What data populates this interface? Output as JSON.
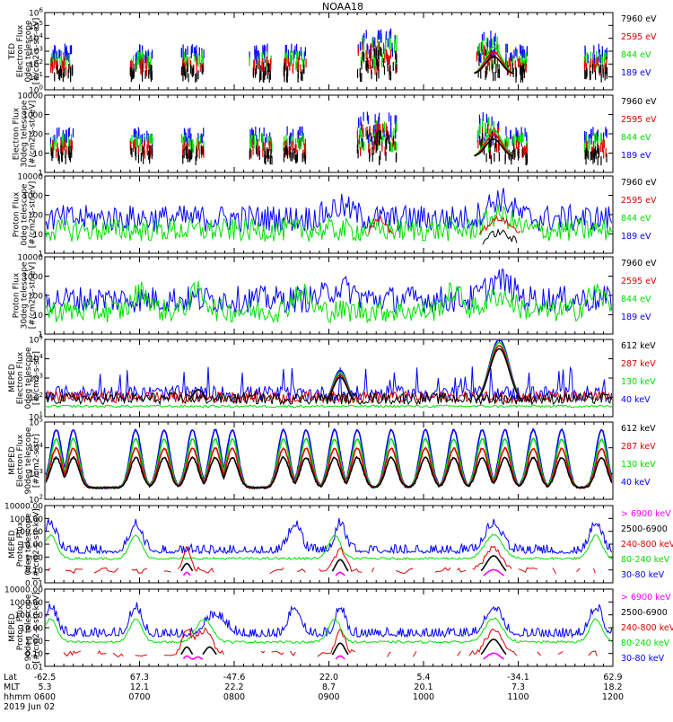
{
  "title": "NOAA18",
  "colors": {
    "black": "#000000",
    "red": "#e00000",
    "green": "#00e000",
    "blue": "#0000ff",
    "magenta": "#ff00ff"
  },
  "bottom_axis": {
    "row_labels": [
      "Lat",
      "MLT",
      "hhmm"
    ],
    "date": "2019 Jun 02",
    "columns": [
      {
        "lat": "-62.5",
        "mlt": "5.3",
        "hhmm": "0600"
      },
      {
        "lat": "67.3",
        "mlt": "12.1",
        "hhmm": "0700"
      },
      {
        "lat": "-47.6",
        "mlt": "22.2",
        "hhmm": "0800"
      },
      {
        "lat": "22.0",
        "mlt": "8.7",
        "hhmm": "0900"
      },
      {
        "lat": "5.4",
        "mlt": "20.1",
        "hhmm": "1000"
      },
      {
        "lat": "-34.1",
        "mlt": "7.3",
        "hhmm": "1100"
      },
      {
        "lat": "62.9",
        "mlt": "18.2",
        "hhmm": "1200"
      }
    ]
  },
  "chart_data": [
    {
      "type": "scatter",
      "ylabel_lines": [
        "TED",
        "Electron Flux",
        "0deg telescope",
        "[#/cm2-s-str-eV]"
      ],
      "y_log": true,
      "ylim": [
        1,
        1000000
      ],
      "yticks": [
        {
          "base": "10",
          "exp": "0"
        },
        {
          "base": "10",
          "exp": "1"
        },
        {
          "base": "10",
          "exp": "2"
        },
        {
          "base": "10",
          "exp": "3"
        },
        {
          "base": "10",
          "exp": "4"
        },
        {
          "base": "10",
          "exp": "5"
        },
        {
          "base": "10",
          "exp": "6"
        }
      ],
      "legend": [
        {
          "label": "7960 eV",
          "color": "black"
        },
        {
          "label": "2595 eV",
          "color": "red"
        },
        {
          "label": "844 eV",
          "color": "green"
        },
        {
          "label": "189 eV",
          "color": "blue"
        }
      ],
      "style": "ted_e"
    },
    {
      "type": "scatter",
      "ylabel_lines": [
        "Electron Flux",
        "30deg telescope",
        "[#/cm2-s-str-eV]"
      ],
      "y_log": true,
      "ylim": [
        1,
        10000
      ],
      "yticks": [
        {
          "text": "1"
        },
        {
          "text": "10"
        },
        {
          "text": "100"
        },
        {
          "text": "1000"
        },
        {
          "text": "10000"
        }
      ],
      "legend": [
        {
          "label": "7960 eV",
          "color": "black"
        },
        {
          "label": "2595 eV",
          "color": "red"
        },
        {
          "label": "844 eV",
          "color": "green"
        },
        {
          "label": "189 eV",
          "color": "blue"
        }
      ],
      "style": "ted_e"
    },
    {
      "type": "scatter",
      "ylabel_lines": [
        "Proton Flux",
        "0deg telescope",
        "[#/cm2-s-str-eV]"
      ],
      "y_log": true,
      "ylim": [
        1,
        10000
      ],
      "yticks": [
        {
          "text": "1"
        },
        {
          "text": "10"
        },
        {
          "text": "100"
        },
        {
          "text": "1000"
        },
        {
          "text": "10000"
        }
      ],
      "legend": [
        {
          "label": "7960 eV",
          "color": "black"
        },
        {
          "label": "2595 eV",
          "color": "red"
        },
        {
          "label": "844 eV",
          "color": "green"
        },
        {
          "label": "189 eV",
          "color": "blue"
        }
      ],
      "style": "ted_p0"
    },
    {
      "type": "scatter",
      "ylabel_lines": [
        "Proton Flux",
        "30deg telescope",
        "[#/cm2-s-str-eV]"
      ],
      "y_log": true,
      "ylim": [
        1,
        10000
      ],
      "yticks": [
        {
          "text": "1"
        },
        {
          "text": "10"
        },
        {
          "text": "100"
        },
        {
          "text": "1000"
        },
        {
          "text": "10000"
        }
      ],
      "legend": [
        {
          "label": "7960 eV",
          "color": "black"
        },
        {
          "label": "2595 eV",
          "color": "red"
        },
        {
          "label": "844 eV",
          "color": "green"
        },
        {
          "label": "189 eV",
          "color": "blue"
        }
      ],
      "style": "ted_p30"
    },
    {
      "type": "scatter",
      "ylabel_lines": [
        "MEPED",
        "Electron Flux",
        "0deg telescope",
        "[#/cm2-s-str]"
      ],
      "y_log": true,
      "ylim": [
        10,
        1000000
      ],
      "yticks": [
        {
          "base": "10",
          "exp": "1"
        },
        {
          "base": "10",
          "exp": "2"
        },
        {
          "base": "10",
          "exp": "3"
        },
        {
          "base": "10",
          "exp": "4"
        },
        {
          "base": "10",
          "exp": "5"
        }
      ],
      "legend": [
        {
          "label": "612 keV",
          "color": "black"
        },
        {
          "label": "287 keV",
          "color": "red"
        },
        {
          "label": "130 keV",
          "color": "green"
        },
        {
          "label": "40 keV",
          "color": "blue"
        }
      ],
      "style": "meped_e0"
    },
    {
      "type": "scatter",
      "ylabel_lines": [
        "MEPED",
        "Electron Flux",
        "90deg telescope",
        "[#/cm2-s-str]"
      ],
      "y_log": true,
      "ylim": [
        10,
        1000000
      ],
      "yticks": [
        {
          "base": "10",
          "exp": "2"
        },
        {
          "base": "10",
          "exp": "3"
        },
        {
          "base": "10",
          "exp": "4"
        },
        {
          "base": "10",
          "exp": "5"
        }
      ],
      "legend": [
        {
          "label": "612 keV",
          "color": "black"
        },
        {
          "label": "287 keV",
          "color": "red"
        },
        {
          "label": "130 keV",
          "color": "green"
        },
        {
          "label": "40 keV",
          "color": "blue"
        }
      ],
      "style": "meped_e90"
    },
    {
      "type": "scatter",
      "ylabel_lines": [
        "MEPED",
        "Proton Flux",
        "0deg telescope",
        "[#/cm2-s-str-keV]"
      ],
      "y_log": true,
      "ylim": [
        0.01,
        10000
      ],
      "yticks": [
        {
          "text": "0.01"
        },
        {
          "text": "0.10"
        },
        {
          "text": "1.00"
        },
        {
          "text": "10.00"
        },
        {
          "text": "100.00"
        },
        {
          "text": "1000.00"
        },
        {
          "text": "10000.00"
        }
      ],
      "legend": [
        {
          "label": "> 6900 keV",
          "color": "magenta"
        },
        {
          "label": "2500-6900",
          "color": "black"
        },
        {
          "label": "240-800 keV",
          "color": "red"
        },
        {
          "label": "80-240 keV",
          "color": "green"
        },
        {
          "label": "30-80 keV",
          "color": "blue"
        }
      ],
      "style": "meped_p0"
    },
    {
      "type": "scatter",
      "ylabel_lines": [
        "MEPED",
        "Proton Flux",
        "90deg telescope",
        "[#/cm2-s-str-keV]"
      ],
      "y_log": true,
      "ylim": [
        0.01,
        10000
      ],
      "yticks": [
        {
          "text": "0.01"
        },
        {
          "text": "0.10"
        },
        {
          "text": "1.00"
        },
        {
          "text": "10.00"
        },
        {
          "text": "100.00"
        },
        {
          "text": "1000.00"
        },
        {
          "text": "10000.00"
        }
      ],
      "legend": [
        {
          "label": "> 6900 keV",
          "color": "magenta"
        },
        {
          "label": "2500-6900",
          "color": "black"
        },
        {
          "label": "240-800 keV",
          "color": "red"
        },
        {
          "label": "80-240 keV",
          "color": "green"
        },
        {
          "label": "30-80 keV",
          "color": "blue"
        }
      ],
      "style": "meped_p90"
    }
  ]
}
